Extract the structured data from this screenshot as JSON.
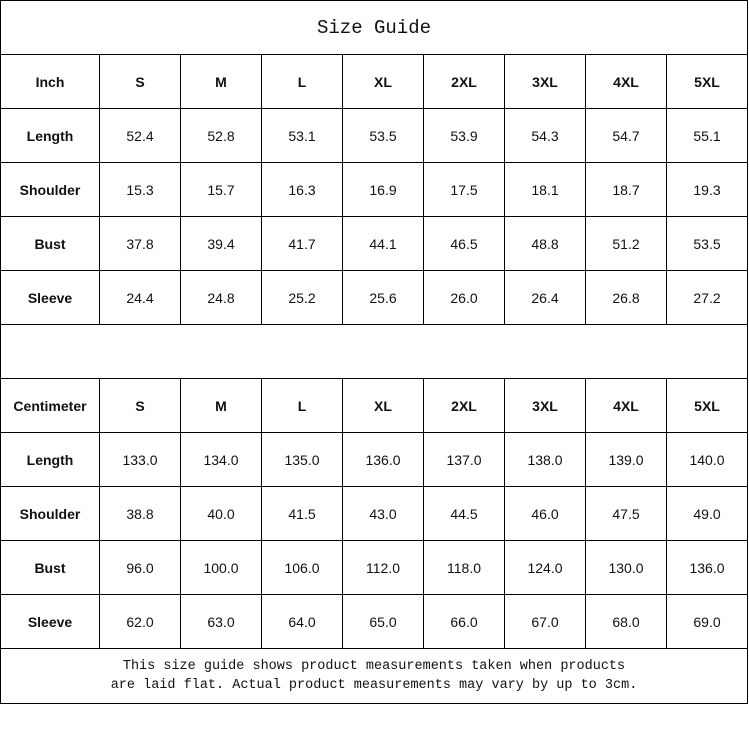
{
  "title": "Size Guide",
  "sizes": [
    "S",
    "M",
    "L",
    "XL",
    "2XL",
    "3XL",
    "4XL",
    "5XL"
  ],
  "inch": {
    "unit_label": "Inch",
    "rows": [
      {
        "label": "Length",
        "values": [
          "52.4",
          "52.8",
          "53.1",
          "53.5",
          "53.9",
          "54.3",
          "54.7",
          "55.1"
        ]
      },
      {
        "label": "Shoulder",
        "values": [
          "15.3",
          "15.7",
          "16.3",
          "16.9",
          "17.5",
          "18.1",
          "18.7",
          "19.3"
        ]
      },
      {
        "label": "Bust",
        "values": [
          "37.8",
          "39.4",
          "41.7",
          "44.1",
          "46.5",
          "48.8",
          "51.2",
          "53.5"
        ]
      },
      {
        "label": "Sleeve",
        "values": [
          "24.4",
          "24.8",
          "25.2",
          "25.6",
          "26.0",
          "26.4",
          "26.8",
          "27.2"
        ]
      }
    ]
  },
  "cm": {
    "unit_label": "Centimeter",
    "rows": [
      {
        "label": "Length",
        "values": [
          "133.0",
          "134.0",
          "135.0",
          "136.0",
          "137.0",
          "138.0",
          "139.0",
          "140.0"
        ]
      },
      {
        "label": "Shoulder",
        "values": [
          "38.8",
          "40.0",
          "41.5",
          "43.0",
          "44.5",
          "46.0",
          "47.5",
          "49.0"
        ]
      },
      {
        "label": "Bust",
        "values": [
          "96.0",
          "100.0",
          "106.0",
          "112.0",
          "118.0",
          "124.0",
          "130.0",
          "136.0"
        ]
      },
      {
        "label": "Sleeve",
        "values": [
          "62.0",
          "63.0",
          "64.0",
          "65.0",
          "66.0",
          "67.0",
          "68.0",
          "69.0"
        ]
      }
    ]
  },
  "footer": {
    "line1": "This size guide shows product measurements taken when products",
    "line2": "are laid flat. Actual product measurements may vary by up to 3cm."
  }
}
